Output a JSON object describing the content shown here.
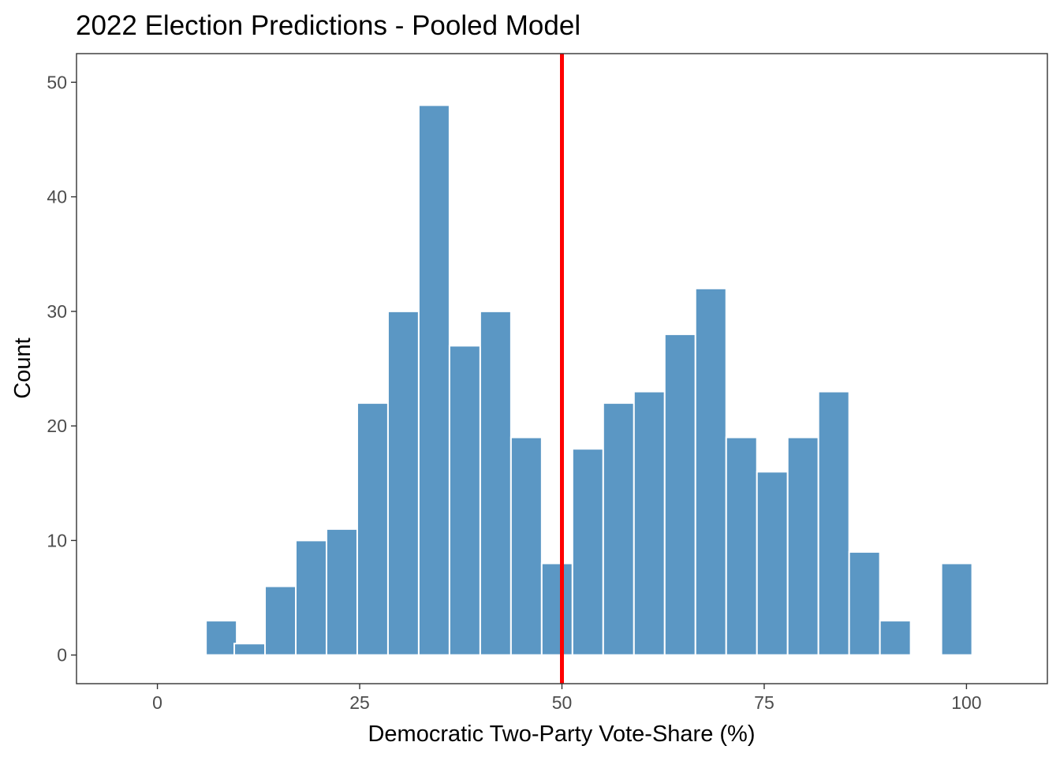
{
  "chart_data": {
    "type": "bar",
    "title": "2022 Election Predictions - Pooled Model",
    "xlabel": "Democratic Two-Party Vote-Share (%)",
    "ylabel": "Count",
    "xlim": [
      -10,
      110
    ],
    "ylim": [
      -2.5,
      52.5
    ],
    "x_ticks": [
      0,
      25,
      50,
      75,
      100
    ],
    "y_ticks": [
      0,
      10,
      20,
      30,
      40,
      50
    ],
    "bin_width": 3.8,
    "bins": [
      {
        "center": 7.9,
        "count": 3
      },
      {
        "center": 11.4,
        "count": 1
      },
      {
        "center": 15.2,
        "count": 6
      },
      {
        "center": 19.0,
        "count": 10
      },
      {
        "center": 22.8,
        "count": 11
      },
      {
        "center": 26.6,
        "count": 22
      },
      {
        "center": 30.4,
        "count": 30
      },
      {
        "center": 34.2,
        "count": 48
      },
      {
        "center": 38.0,
        "count": 27
      },
      {
        "center": 41.8,
        "count": 30
      },
      {
        "center": 45.6,
        "count": 19
      },
      {
        "center": 49.4,
        "count": 8
      },
      {
        "center": 53.2,
        "count": 18
      },
      {
        "center": 57.0,
        "count": 22
      },
      {
        "center": 60.8,
        "count": 23
      },
      {
        "center": 64.6,
        "count": 28
      },
      {
        "center": 68.4,
        "count": 32
      },
      {
        "center": 72.2,
        "count": 19
      },
      {
        "center": 76.0,
        "count": 16
      },
      {
        "center": 79.8,
        "count": 19
      },
      {
        "center": 83.6,
        "count": 23
      },
      {
        "center": 87.4,
        "count": 9
      },
      {
        "center": 91.2,
        "count": 3
      },
      {
        "center": 98.8,
        "count": 8
      }
    ],
    "reference_line": {
      "x": 50,
      "color": "#ff0000"
    },
    "bar_color": "#5b97c4",
    "bar_edge_color": "#ffffff",
    "grid": false,
    "legend": "none"
  }
}
